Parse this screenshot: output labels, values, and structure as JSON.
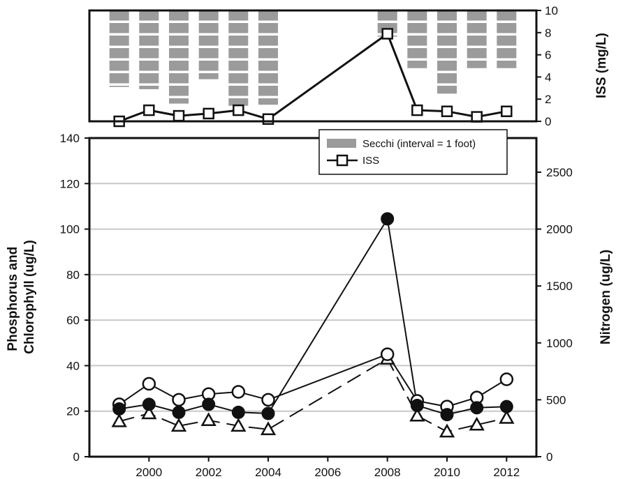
{
  "chart_data": [
    {
      "type": "bar",
      "panel": "top",
      "ylabel": "ISS (mg/L)",
      "ylim": [
        0,
        10
      ],
      "y_ticks": [
        "0",
        "2",
        "4",
        "6",
        "8",
        "10"
      ],
      "x": [
        1999,
        2000,
        2001,
        2002,
        2003,
        2004,
        2008,
        2009,
        2010,
        2011,
        2012
      ],
      "series": [
        {
          "name": "Secchi (interval = 1 foot)",
          "kind": "secchi_bars",
          "values": [
            3.1,
            2.9,
            1.6,
            3.8,
            1.4,
            1.5,
            7.7,
            4.8,
            2.5,
            4.8,
            4.8
          ]
        },
        {
          "name": "ISS",
          "kind": "line_open_square",
          "values": [
            0.0,
            1.0,
            0.5,
            0.7,
            1.0,
            0.2,
            7.9,
            1.0,
            0.9,
            0.4,
            0.9
          ]
        }
      ],
      "legend": {
        "placement": "upper-right"
      }
    },
    {
      "type": "line",
      "panel": "bottom",
      "ylabel": "Phosphorus and Chlorophyll (ug/L)",
      "ylabel_lines": [
        "Phosphorus and",
        "Chlorophyll (ug/L)"
      ],
      "ylim": [
        0,
        140
      ],
      "y_ticks": [
        "0",
        "20",
        "40",
        "60",
        "80",
        "100",
        "120",
        "140"
      ],
      "y2label": "Nitrogen (ug/L)",
      "y2lim": [
        0,
        2800
      ],
      "y2_ticks": [
        "0",
        "500",
        "1000",
        "1500",
        "2000",
        "2500"
      ],
      "xlim": [
        1998,
        2013
      ],
      "x_ticks": [
        "2000",
        "2002",
        "2004",
        "2006",
        "2008",
        "2010",
        "2012"
      ],
      "grid": true,
      "x": [
        1999,
        2000,
        2001,
        2002,
        2003,
        2004,
        2008,
        2009,
        2010,
        2011,
        2012
      ],
      "series": [
        {
          "kind": "solid_filled_circle",
          "values": [
            21,
            23,
            19.5,
            23,
            19.5,
            19,
            104.5,
            22.5,
            18.5,
            21.5,
            22
          ]
        },
        {
          "kind": "solid_open_circle",
          "values": [
            23,
            32,
            25,
            27.5,
            28.5,
            25,
            45,
            24.5,
            22,
            26,
            34
          ]
        },
        {
          "kind": "dashed_open_triangle",
          "values": [
            15.5,
            19,
            13.5,
            16,
            13.5,
            12,
            43,
            18,
            11,
            14,
            17
          ]
        }
      ]
    }
  ],
  "style": {
    "bar_color": "#9b9b9b",
    "line_color": "#111111",
    "grid_color": "#c8c8c8",
    "marker_fill": "#ffffff"
  }
}
